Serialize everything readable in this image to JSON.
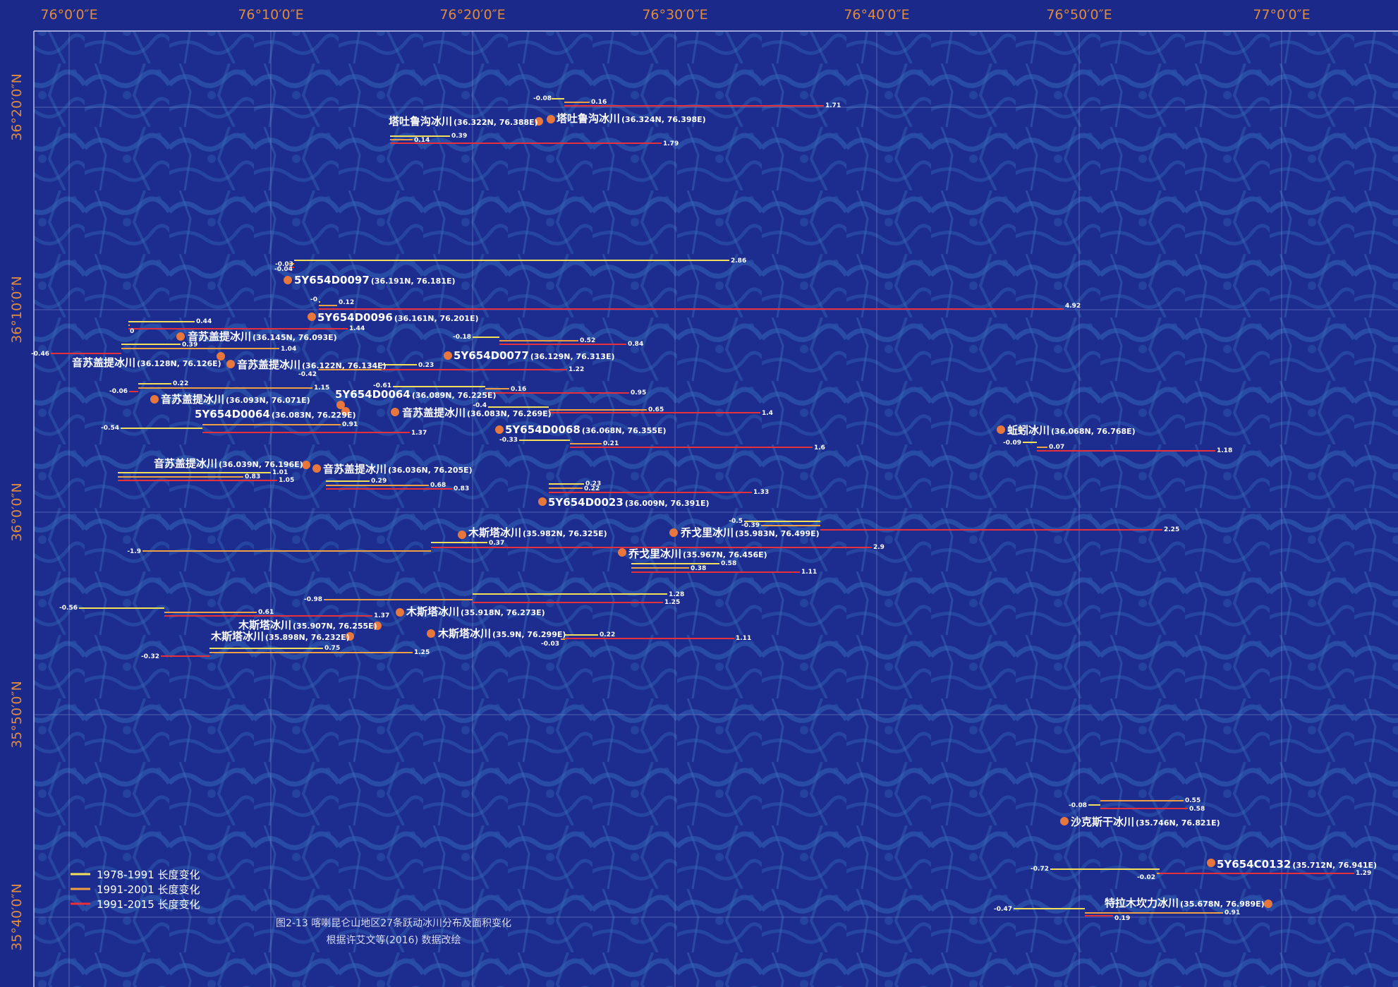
{
  "map": {
    "axes": {
      "lon_labels": [
        "76°0′0″E",
        "76°10′0″E",
        "76°20′0″E",
        "76°30′0″E",
        "76°40′0″E",
        "76°50′0″E",
        "77°0′0″E"
      ],
      "lat_labels": [
        "36°20′0″N",
        "36°10′0″N",
        "36°0′0″N",
        "35°50′0″N",
        "35°40′0″N"
      ]
    },
    "colors": {
      "background": "#1b2a8a",
      "terrain": "#2d56ad",
      "grid": "#8b94d4",
      "marker": "#e8773e",
      "p1978_1991": "#f4df5a",
      "p1991_2001": "#f0a040",
      "p1991_2015": "#e8303a",
      "axis_text": "#e08a3a"
    },
    "glaciers": [
      {
        "id": "g1",
        "name": "塔吐鲁沟冰川",
        "coord": "(36.322N, 76.388E)"
      },
      {
        "id": "g2",
        "name": "塔吐鲁沟冰川",
        "coord": "(36.324N, 76.398E)"
      },
      {
        "id": "g3",
        "name": "5Y654D0097",
        "coord": "(36.191N, 76.181E)"
      },
      {
        "id": "g4",
        "name": "5Y654D0096",
        "coord": "(36.161N, 76.201E)"
      },
      {
        "id": "g5",
        "name": "音苏盖提冰川",
        "coord": "(36.145N, 76.093E)"
      },
      {
        "id": "g6",
        "name": "音苏盖提冰川",
        "coord": "(36.128N, 76.126E)"
      },
      {
        "id": "g7",
        "name": "音苏盖提冰川",
        "coord": "(36.122N, 76.134E)"
      },
      {
        "id": "g8",
        "name": "5Y654D0077",
        "coord": "(36.129N, 76.313E)"
      },
      {
        "id": "g9",
        "name": "音苏盖提冰川",
        "coord": "(36.093N, 76.071E)"
      },
      {
        "id": "g10",
        "name": "5Y654D0064",
        "coord": "(36.089N, 76.225E)"
      },
      {
        "id": "g11",
        "name": "5Y654D0064",
        "coord": "(36.083N, 76.229E)"
      },
      {
        "id": "g12",
        "name": "音苏盖提冰川",
        "coord": "(36.083N, 76.269E)"
      },
      {
        "id": "g13",
        "name": "5Y654D0068",
        "coord": "(36.068N, 76.355E)"
      },
      {
        "id": "g14",
        "name": "蚯蚓冰川",
        "coord": "(36.068N, 76.768E)"
      },
      {
        "id": "g15",
        "name": "音苏盖提冰川",
        "coord": "(36.039N, 76.196E)"
      },
      {
        "id": "g16",
        "name": "音苏盖提冰川",
        "coord": "(36.036N, 76.205E)"
      },
      {
        "id": "g17",
        "name": "5Y654D0023",
        "coord": "(36.009N, 76.391E)"
      },
      {
        "id": "g18",
        "name": "木斯塔冰川",
        "coord": "(35.982N, 76.325E)"
      },
      {
        "id": "g19",
        "name": "乔戈里冰川",
        "coord": "(35.983N, 76.499E)"
      },
      {
        "id": "g20",
        "name": "乔戈里冰川",
        "coord": "(35.967N, 76.456E)"
      },
      {
        "id": "g21",
        "name": "木斯塔冰川",
        "coord": "(35.918N, 76.273E)"
      },
      {
        "id": "g22",
        "name": "木斯塔冰川",
        "coord": "(35.907N, 76.255E)"
      },
      {
        "id": "g23",
        "name": "木斯塔冰川",
        "coord": "(35.898N, 76.232E)"
      },
      {
        "id": "g24",
        "name": "木斯塔冰川",
        "coord": "(35.9N, 76.299E)"
      },
      {
        "id": "g25",
        "name": "沙克斯干冰川",
        "coord": "(35.746N, 76.821E)"
      },
      {
        "id": "g26",
        "name": "5Y654C0132",
        "coord": "(35.712N, 76.941E)"
      },
      {
        "id": "g27",
        "name": "特拉木坎力冰川",
        "coord": "(35.678N, 76.989E)"
      }
    ],
    "bar_values": {
      "b1": "-0.08",
      "b2": "0.16",
      "b3": "1.71",
      "b4": "0.39",
      "b5": "0.14",
      "b6": "1.79",
      "b7": "2.86",
      "b8": "-0.03",
      "b9": "-0.04",
      "b10": "-0",
      "b11": "0.12",
      "b12": "4.92",
      "b13": "0.44",
      "b14": "0",
      "b15": "1.44",
      "b16": "0.39",
      "b17": "1.04",
      "b18": "-0.46",
      "b19": "-0.18",
      "b20": "0.52",
      "b21": "0.84",
      "b22": "0.23",
      "b23": "-0.42",
      "b24": "1.22",
      "b25": "0.22",
      "b26": "1.15",
      "b27": "-0.06",
      "b28": "-0.61",
      "b29": "0.16",
      "b30": "0.95",
      "b31": "-0.4",
      "b32": "0.65",
      "b33": "1.4",
      "b34": "-0.54",
      "b35": "0.91",
      "b36": "1.37",
      "b37": "-0.33",
      "b38": "0.21",
      "b39": "1.6",
      "b40": "-0.09",
      "b41": "0.07",
      "b42": "1.18",
      "b43": "1.01",
      "b44": "0.83",
      "b45": "1.05",
      "b46": "0.29",
      "b47": "0.68",
      "b48": "0.83",
      "b49": "0.23",
      "b50": "0.22",
      "b51": "1.33",
      "b52": "-0.5",
      "b53": "-0.39",
      "b54": "2.25",
      "b55": "0.37",
      "b56": "-1.9",
      "b57": "2.9",
      "b58": "0.58",
      "b59": "0.38",
      "b60": "1.11",
      "b61": "-0.98",
      "b62": "1.28",
      "b63": "1.25",
      "b64": "-0.56",
      "b65": "0.61",
      "b66": "1.37",
      "b67": "0.22",
      "b68": "-0.03",
      "b69": "1.11",
      "b70": "0.75",
      "b71": "-0.32",
      "b72": "1.25",
      "b73": "-0.08",
      "b74": "0.55",
      "b75": "0.58",
      "b76": "-0.72",
      "b77": "-0.02",
      "b78": "1.29",
      "b79": "-0.47",
      "b80": "0.91",
      "b81": "0.19"
    },
    "legend": {
      "items": [
        "1978-1991 长度变化",
        "1991-2001 长度变化",
        "1991-2015 长度变化"
      ]
    },
    "caption": {
      "line1": "图2-13 喀喇昆仑山地区27条跃动冰川分布及面积变化",
      "line2": "根据许艾文等(2016) 数据改绘"
    }
  }
}
